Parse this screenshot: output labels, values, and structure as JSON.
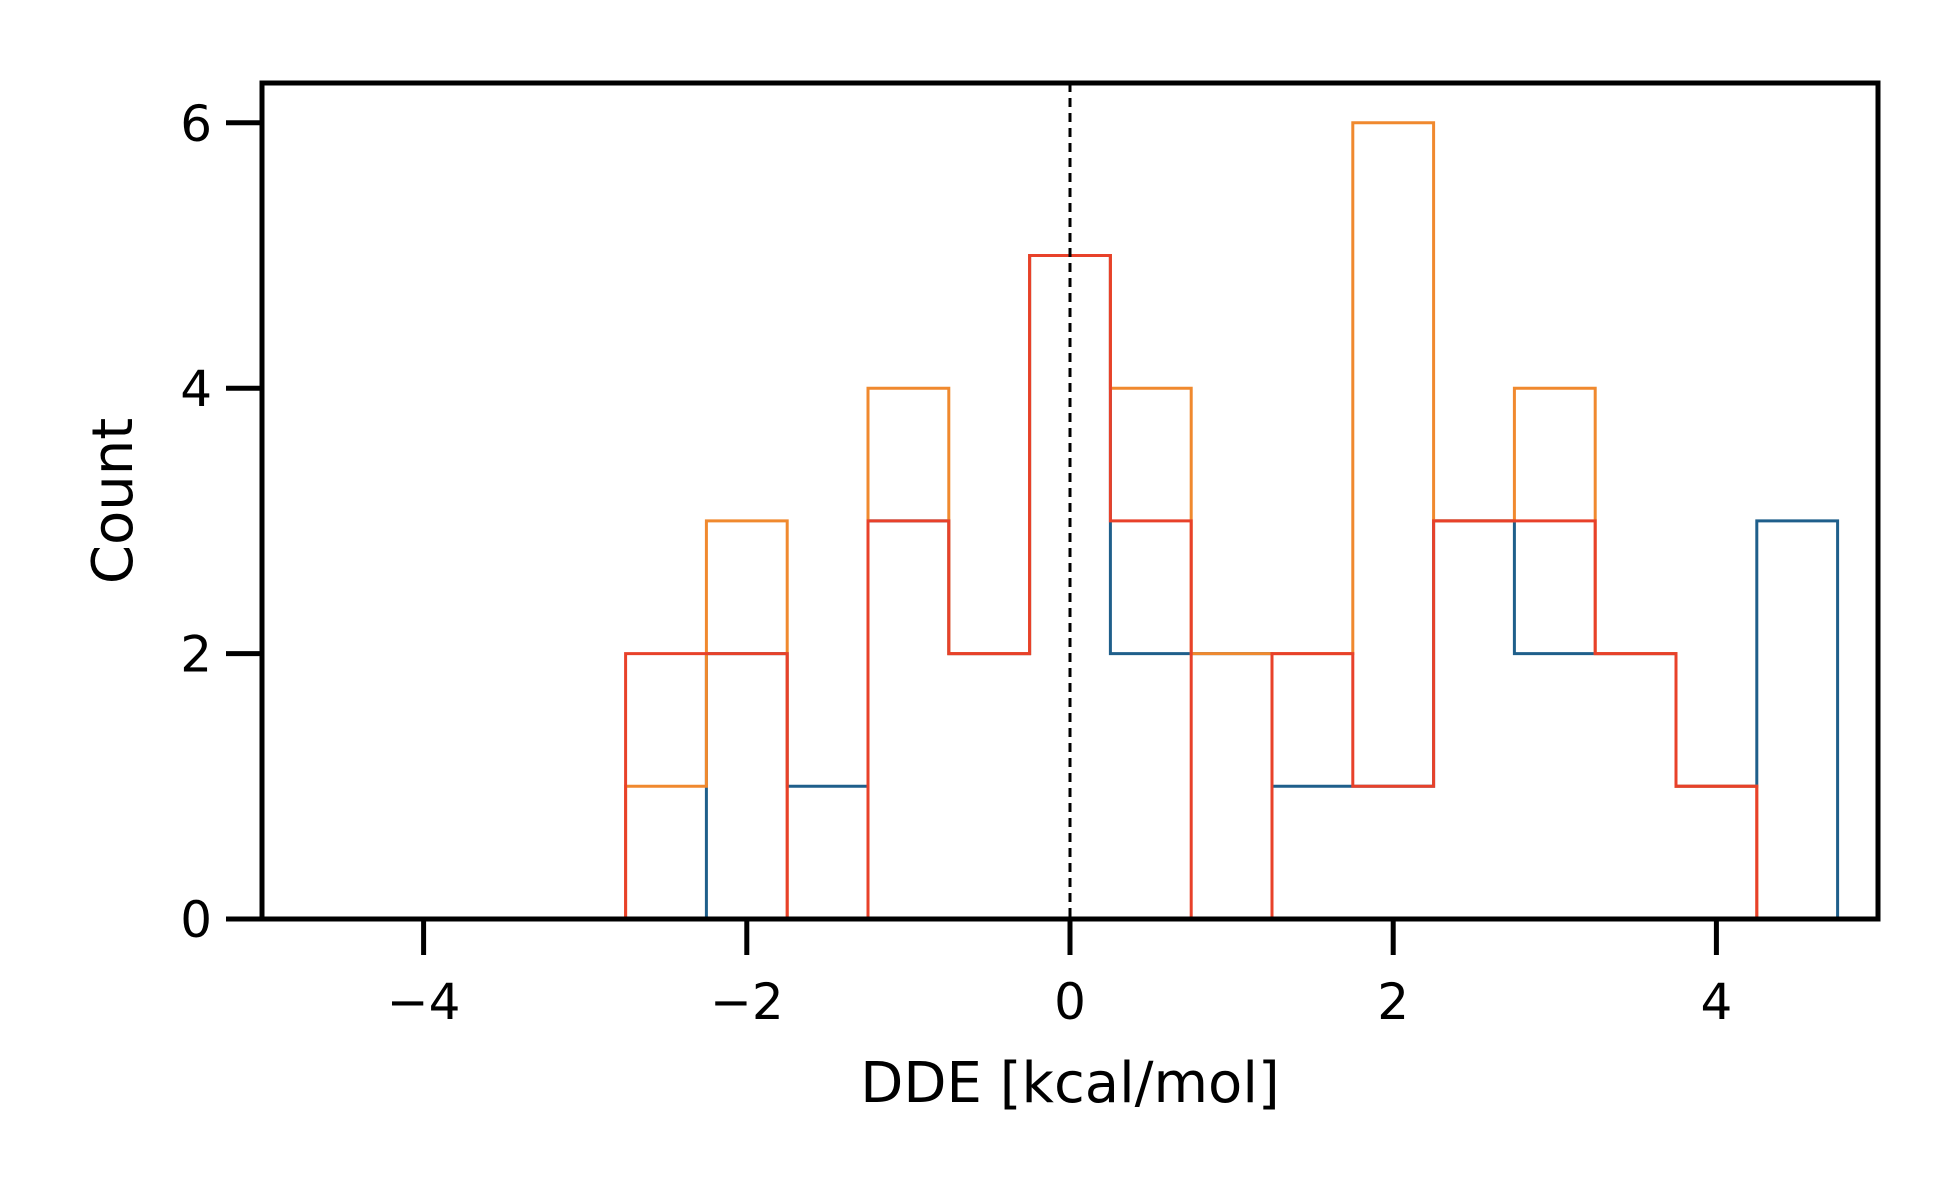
{
  "chart_data": {
    "type": "histogram",
    "title": "",
    "xlabel": "DDE [kcal/mol]",
    "ylabel": "Count",
    "xlim": [
      -5,
      5
    ],
    "ylim": [
      0,
      6.3
    ],
    "xticks": [
      -4,
      -2,
      0,
      2,
      4
    ],
    "xtick_labels": [
      "−4",
      "−2",
      "0",
      "2",
      "4"
    ],
    "yticks": [
      0,
      2,
      4,
      6
    ],
    "ytick_labels": [
      "0",
      "2",
      "4",
      "6"
    ],
    "grid": false,
    "legend": "none",
    "bin_edges": [
      -2.75,
      -2.25,
      -1.75,
      -1.25,
      -0.75,
      -0.25,
      0.25,
      0.75,
      1.25,
      1.75,
      2.25,
      2.75,
      3.25,
      3.75,
      4.25,
      4.75
    ],
    "series": [
      {
        "color": "#1f5f8b",
        "values": [
          0,
          2,
          1,
          3,
          2,
          5,
          2,
          2,
          1,
          1,
          3,
          2,
          2,
          1,
          3
        ]
      },
      {
        "color": "#f0892e",
        "values": [
          1,
          3,
          0,
          4,
          2,
          5,
          4,
          2,
          2,
          6,
          3,
          4,
          2,
          1,
          0
        ]
      },
      {
        "color": "#e8412a",
        "values": [
          2,
          2,
          0,
          3,
          2,
          5,
          3,
          0,
          2,
          1,
          3,
          3,
          2,
          1,
          0
        ]
      }
    ],
    "reference_line": {
      "x": 0,
      "style": "dashed",
      "color": "#000000"
    }
  }
}
